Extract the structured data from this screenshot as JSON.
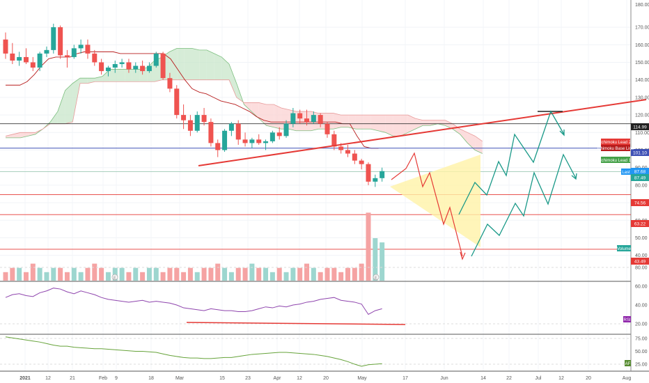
{
  "chart_data": {
    "type": "candlestick",
    "price_axis": {
      "ticks": [
        "170.00",
        "160.00",
        "150.00",
        "140.00",
        "130.00",
        "120.00",
        "110.00",
        "100.00",
        "90.00",
        "80.00",
        "70.00",
        "60.00",
        "50.00",
        "40.00"
      ],
      "ylim": [
        30,
        180
      ],
      "top_label": "180.00"
    },
    "x_axis": {
      "ticks": [
        "2021",
        "12",
        "21",
        "Feb",
        "9",
        "18",
        "Mar",
        "15",
        "23",
        "Apr",
        "12",
        "20",
        "May",
        "17",
        "Jun",
        "14",
        "22",
        "Jul",
        "12",
        "20",
        "Aug"
      ]
    },
    "candles": [
      {
        "o": 163,
        "h": 167,
        "l": 152,
        "c": 155
      },
      {
        "o": 155,
        "h": 161,
        "l": 149,
        "c": 151
      },
      {
        "o": 151,
        "h": 156,
        "l": 148,
        "c": 153
      },
      {
        "o": 153,
        "h": 158,
        "l": 149,
        "c": 150
      },
      {
        "o": 150,
        "h": 153,
        "l": 145,
        "c": 147
      },
      {
        "o": 147,
        "h": 156,
        "l": 145,
        "c": 155
      },
      {
        "o": 155,
        "h": 159,
        "l": 153,
        "c": 157
      },
      {
        "o": 157,
        "h": 172,
        "l": 155,
        "c": 170
      },
      {
        "o": 170,
        "h": 171,
        "l": 152,
        "c": 154
      },
      {
        "o": 154,
        "h": 157,
        "l": 147,
        "c": 153
      },
      {
        "o": 153,
        "h": 160,
        "l": 152,
        "c": 158
      },
      {
        "o": 158,
        "h": 163,
        "l": 155,
        "c": 160
      },
      {
        "o": 160,
        "h": 163,
        "l": 152,
        "c": 155
      },
      {
        "o": 155,
        "h": 157,
        "l": 148,
        "c": 150
      },
      {
        "o": 150,
        "h": 152,
        "l": 143,
        "c": 145
      },
      {
        "o": 145,
        "h": 148,
        "l": 142,
        "c": 147
      },
      {
        "o": 147,
        "h": 151,
        "l": 144,
        "c": 149
      },
      {
        "o": 149,
        "h": 152,
        "l": 147,
        "c": 150
      },
      {
        "o": 150,
        "h": 152,
        "l": 144,
        "c": 146
      },
      {
        "o": 146,
        "h": 150,
        "l": 144,
        "c": 148
      },
      {
        "o": 148,
        "h": 151,
        "l": 143,
        "c": 145
      },
      {
        "o": 145,
        "h": 150,
        "l": 144,
        "c": 148
      },
      {
        "o": 148,
        "h": 156,
        "l": 147,
        "c": 155
      },
      {
        "o": 155,
        "h": 156,
        "l": 140,
        "c": 141
      },
      {
        "o": 141,
        "h": 144,
        "l": 133,
        "c": 135
      },
      {
        "o": 135,
        "h": 137,
        "l": 118,
        "c": 120
      },
      {
        "o": 120,
        "h": 126,
        "l": 112,
        "c": 117
      },
      {
        "o": 117,
        "h": 120,
        "l": 108,
        "c": 111
      },
      {
        "o": 111,
        "h": 122,
        "l": 110,
        "c": 120
      },
      {
        "o": 120,
        "h": 124,
        "l": 114,
        "c": 116
      },
      {
        "o": 116,
        "h": 118,
        "l": 102,
        "c": 104
      },
      {
        "o": 104,
        "h": 106,
        "l": 96,
        "c": 100
      },
      {
        "o": 100,
        "h": 112,
        "l": 99,
        "c": 111
      },
      {
        "o": 111,
        "h": 116,
        "l": 108,
        "c": 115
      },
      {
        "o": 115,
        "h": 117,
        "l": 103,
        "c": 106
      },
      {
        "o": 106,
        "h": 110,
        "l": 102,
        "c": 104
      },
      {
        "o": 104,
        "h": 107,
        "l": 101,
        "c": 106
      },
      {
        "o": 106,
        "h": 109,
        "l": 103,
        "c": 104
      },
      {
        "o": 104,
        "h": 106,
        "l": 100,
        "c": 105
      },
      {
        "o": 105,
        "h": 111,
        "l": 104,
        "c": 110
      },
      {
        "o": 110,
        "h": 113,
        "l": 106,
        "c": 108
      },
      {
        "o": 108,
        "h": 117,
        "l": 107,
        "c": 115
      },
      {
        "o": 115,
        "h": 124,
        "l": 113,
        "c": 121
      },
      {
        "o": 121,
        "h": 123,
        "l": 115,
        "c": 118
      },
      {
        "o": 118,
        "h": 123,
        "l": 114,
        "c": 116
      },
      {
        "o": 116,
        "h": 122,
        "l": 115,
        "c": 120
      },
      {
        "o": 120,
        "h": 121,
        "l": 113,
        "c": 115
      },
      {
        "o": 115,
        "h": 116,
        "l": 107,
        "c": 109
      },
      {
        "o": 109,
        "h": 111,
        "l": 100,
        "c": 102
      },
      {
        "o": 102,
        "h": 104,
        "l": 98,
        "c": 100
      },
      {
        "o": 100,
        "h": 103,
        "l": 96,
        "c": 98
      },
      {
        "o": 98,
        "h": 100,
        "l": 92,
        "c": 94
      },
      {
        "o": 94,
        "h": 95,
        "l": 89,
        "c": 92
      },
      {
        "o": 92,
        "h": 93,
        "l": 80,
        "c": 82
      },
      {
        "o": 82,
        "h": 86,
        "l": 79,
        "c": 84
      },
      {
        "o": 84,
        "h": 90,
        "l": 82,
        "c": 88
      }
    ],
    "volume": [
      2,
      3,
      3,
      2,
      4,
      3,
      2,
      3,
      3,
      2,
      3,
      2,
      3,
      4,
      3,
      2,
      3,
      3,
      2,
      3,
      2,
      3,
      3,
      2,
      3,
      3,
      2,
      3,
      2,
      3,
      3,
      4,
      3,
      2,
      3,
      3,
      4,
      3,
      3,
      2,
      3,
      2,
      3,
      3,
      4,
      3,
      2,
      3,
      3,
      2,
      3,
      3,
      4,
      16,
      10,
      9
    ],
    "cloud": {
      "lead1": [
        107,
        107,
        107,
        108,
        109,
        112,
        116,
        122,
        134,
        138,
        141,
        141,
        141,
        142,
        146,
        146,
        146,
        146,
        146,
        147,
        151,
        153,
        156,
        158,
        158,
        158,
        157,
        157,
        155,
        153,
        149,
        138,
        126,
        122,
        118,
        114,
        113,
        112,
        112,
        111,
        111,
        111,
        112,
        112,
        112,
        113,
        113,
        112,
        112,
        112,
        111,
        110,
        108,
        108,
        110,
        112,
        114,
        114,
        115,
        114,
        112,
        109,
        104,
        100,
        98
      ],
      "lead2": [
        108,
        109,
        110,
        110,
        110,
        112,
        115,
        115,
        115,
        116,
        138,
        138,
        139,
        139,
        139,
        139,
        139,
        139,
        139,
        139,
        139,
        140,
        140,
        140,
        140,
        140,
        140,
        140,
        140,
        140,
        140,
        130,
        127,
        127,
        127,
        126,
        126,
        124,
        123,
        122,
        122,
        122,
        121,
        121,
        121,
        120,
        120,
        120,
        120,
        120,
        120,
        120,
        120,
        120,
        120,
        118,
        117,
        117,
        117,
        117,
        115,
        112,
        110,
        108,
        105
      ]
    },
    "base_line": [
      137,
      137,
      137,
      139,
      143,
      148,
      152,
      153,
      153,
      153,
      155,
      156,
      156,
      156,
      156,
      156,
      155,
      155,
      155,
      155,
      155,
      155,
      155,
      152,
      146,
      140,
      135,
      133,
      132,
      130,
      128,
      127,
      126,
      124,
      122,
      119,
      117,
      116,
      116,
      116,
      116,
      116,
      116,
      116,
      116,
      116,
      116,
      115,
      115,
      108,
      102,
      101,
      101
    ],
    "rsi": [
      48,
      51,
      52,
      50,
      49,
      53,
      55,
      58,
      57,
      54,
      52,
      55,
      53,
      51,
      48,
      46,
      45,
      44,
      43,
      44,
      45,
      43,
      44,
      43,
      42,
      40,
      37,
      36,
      35,
      34,
      36,
      35,
      34,
      34,
      33,
      33,
      34,
      36,
      38,
      37,
      39,
      38,
      40,
      41,
      43,
      44,
      46,
      47,
      48,
      45,
      44,
      43,
      41,
      30,
      34,
      36
    ],
    "af": [
      78,
      76,
      74,
      72,
      70,
      68,
      65,
      62,
      60,
      60,
      58,
      57,
      56,
      55,
      55,
      54,
      53,
      52,
      51,
      50,
      50,
      49,
      48,
      45,
      42,
      40,
      38,
      37,
      37,
      36,
      36,
      37,
      38,
      38,
      40,
      42,
      44,
      45,
      46,
      47,
      48,
      48,
      47,
      46,
      45,
      44,
      42,
      40,
      37,
      34,
      30,
      25,
      21,
      24,
      25,
      26
    ],
    "labels": {
      "lead2": "Ichimoku Lead 2",
      "base": "Ichimoku Base Line",
      "lead1": "Ichimoku Lead 1",
      "last": "Last",
      "volume": "Volume",
      "rsi": "RSI",
      "af": "AF"
    },
    "price_badges": [
      "114.99",
      "101.10",
      "87.68",
      "87.49",
      "74.56",
      "63.22",
      "43.49"
    ],
    "levels": [
      114.99,
      101.1,
      87.68,
      74.56,
      63.22,
      43.49
    ],
    "rsi_axis": [
      "80.00",
      "60.00",
      "40.00",
      "20.00"
    ],
    "af_axis": [
      "75.00",
      "50.00",
      "25.00"
    ],
    "markers": [
      "E",
      "E",
      "E"
    ]
  },
  "colors": {
    "up": "#26a69a",
    "down": "#ef5350",
    "trend": "#e53935",
    "blue_line": "#3f51b5",
    "cloud_green": "#c8e6c9",
    "cloud_red": "#fbd1d1",
    "rsi": "#8e44ad",
    "af": "#66a33a",
    "projection_green": "#1a9988",
    "triangle": "#fff3a8"
  }
}
